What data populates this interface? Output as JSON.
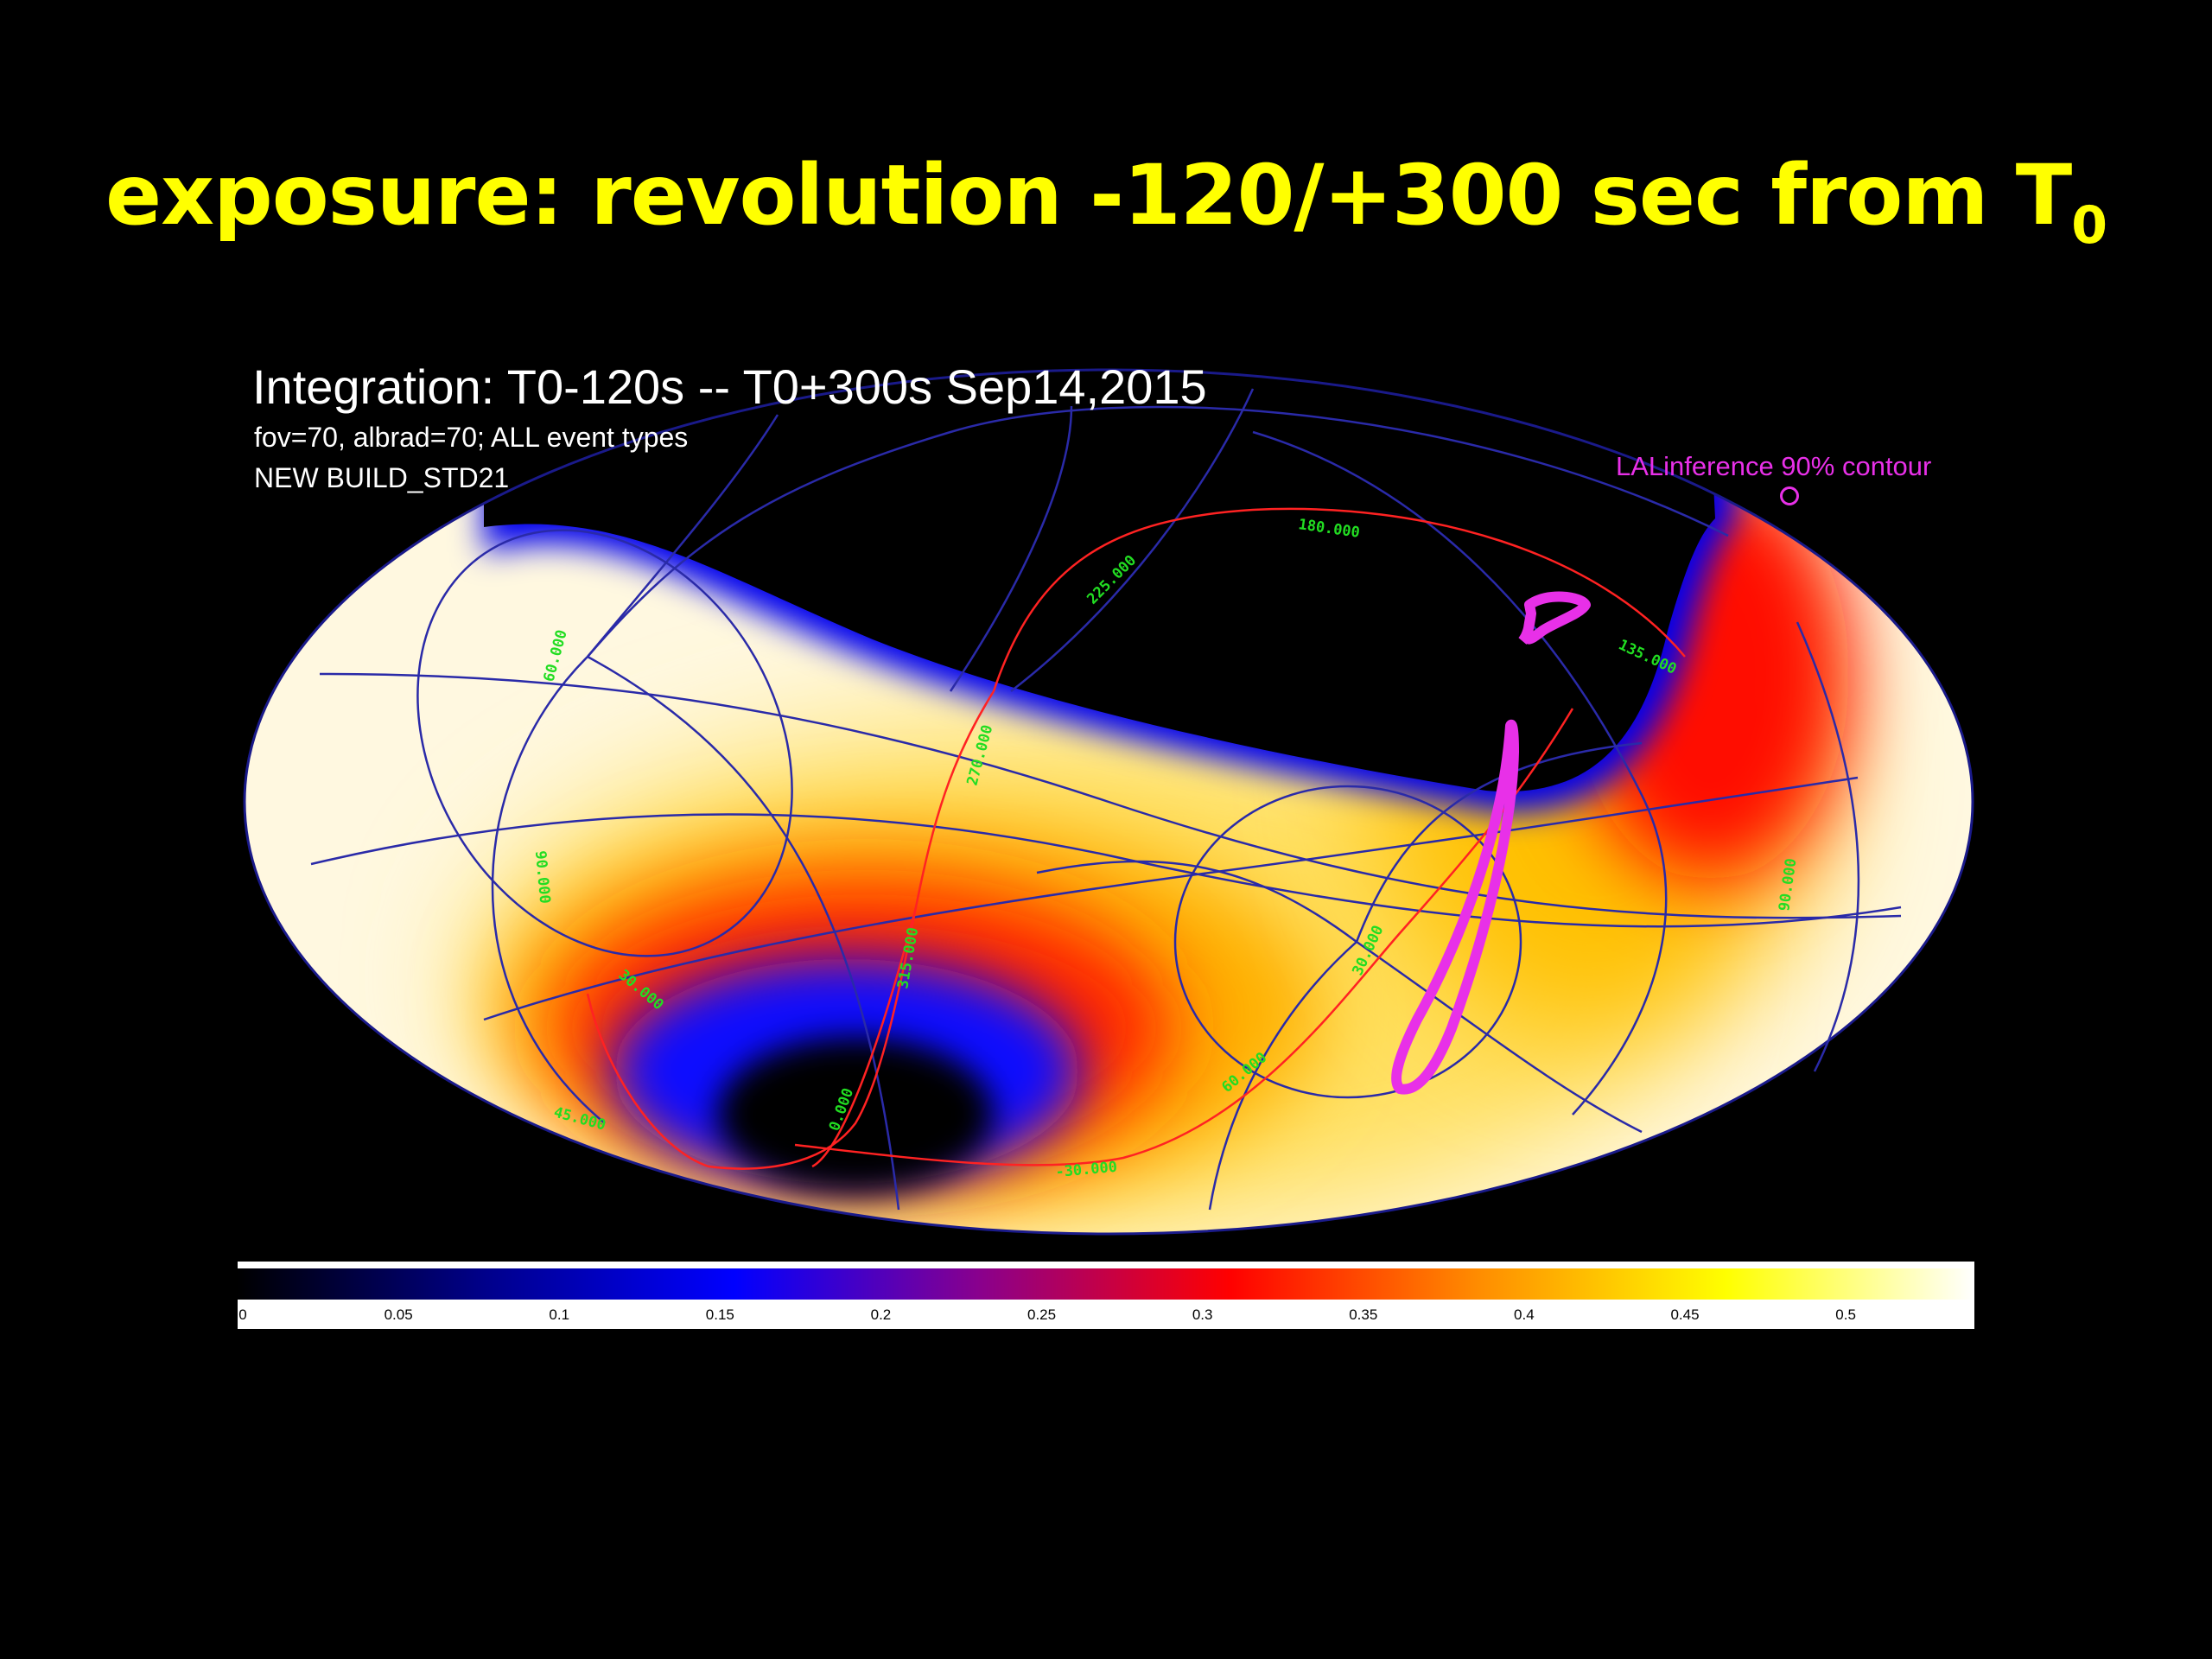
{
  "slide": {
    "title_main": "exposure: revolution -120/+300 sec from T",
    "title_sub": "0"
  },
  "plot": {
    "title": "Integration: T0-120s -- T0+300s Sep14,2015",
    "subtitle1": "fov=70, albrad=70; ALL event types",
    "subtitle2": "NEW BUILD_STD21",
    "legend": {
      "label": "LALinference 90% contour",
      "color": "#e830e8"
    },
    "grid_labels": [
      "180.000",
      "225.000",
      "135.000",
      "90.000",
      "270.000",
      "60.000",
      "90.000",
      "315.000",
      "30.000",
      "30.000",
      "60.000",
      "45.000",
      "0.000",
      "-30.000"
    ],
    "colormap": [
      "#000000",
      "#00008b",
      "#0000ff",
      "#8b008b",
      "#ff0000",
      "#ff8c00",
      "#ffff00",
      "#ffffff"
    ]
  },
  "colorbar": {
    "ticks": [
      "0",
      "0.05",
      "0.1",
      "0.15",
      "0.2",
      "0.25",
      "0.3",
      "0.35",
      "0.4",
      "0.45",
      "0.5"
    ],
    "min": 0,
    "max": 0.54
  }
}
